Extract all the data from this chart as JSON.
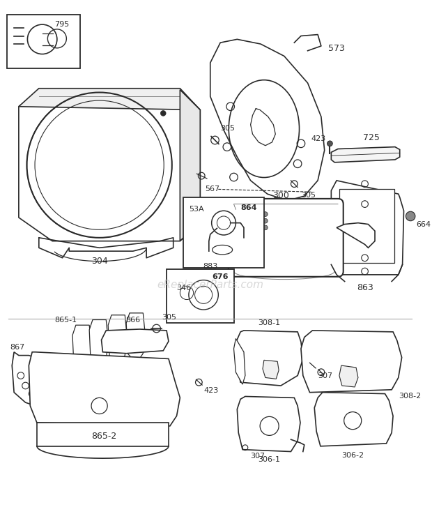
{
  "bg_color": "#ffffff",
  "line_color": "#2a2a2a",
  "watermark": "eReplacerParts.com",
  "watermark_color": "#c8c8c8",
  "figsize": [
    6.2,
    7.27
  ],
  "dpi": 100
}
